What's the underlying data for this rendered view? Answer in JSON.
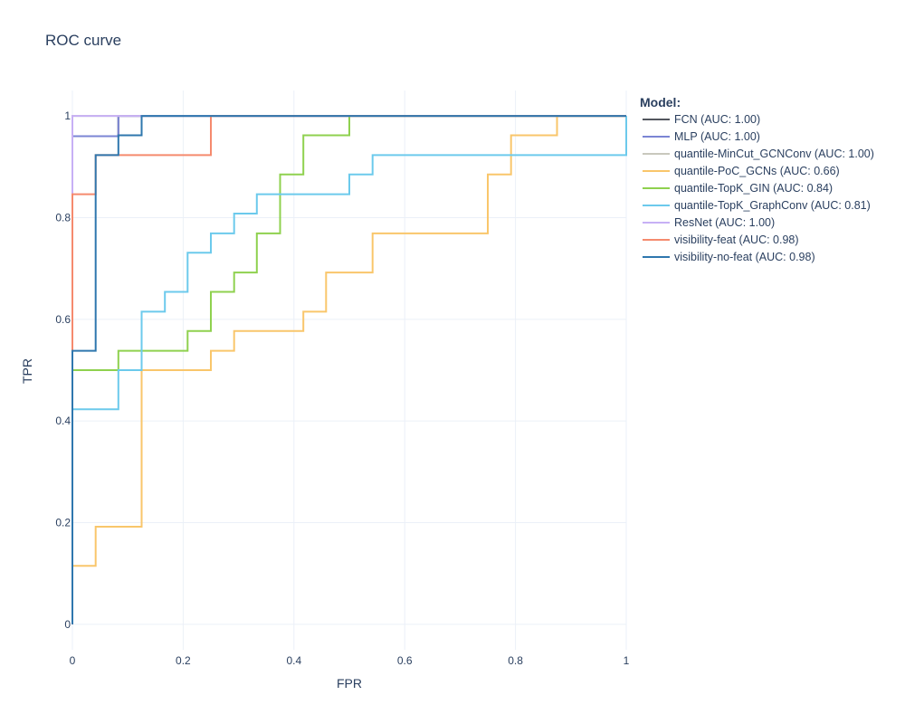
{
  "chart_data": {
    "type": "line",
    "title": "ROC curve",
    "xlabel": "FPR",
    "ylabel": "TPR",
    "xlim": [
      0,
      1
    ],
    "ylim": [
      -0.05,
      1.05
    ],
    "xticks": [
      0,
      0.2,
      0.4,
      0.6,
      0.8,
      1
    ],
    "xtick_labels": [
      "0",
      "0.2",
      "0.4",
      "0.6",
      "0.8",
      "1"
    ],
    "yticks": [
      0,
      0.2,
      0.4,
      0.6,
      0.8,
      1
    ],
    "ytick_labels": [
      "0",
      "0.2",
      "0.4",
      "0.6",
      "0.8",
      "1"
    ],
    "grid": true,
    "legend_title": "Model:",
    "legend_position": "right",
    "series": [
      {
        "name": "FCN (AUC: 1.00)",
        "color": "#53565e",
        "x": [
          0,
          0,
          0.083,
          0.083,
          1
        ],
        "y": [
          0,
          0.96,
          0.96,
          1.0,
          1.0
        ]
      },
      {
        "name": "MLP (AUC: 1.00)",
        "color": "#7b85d4",
        "x": [
          0,
          0,
          0.083,
          0.083,
          1
        ],
        "y": [
          0,
          0.96,
          0.96,
          1.0,
          1.0
        ]
      },
      {
        "name": "quantile-MinCut_GCNConv (AUC: 1.00)",
        "color": "#c9c8bd",
        "x": [
          0,
          0,
          1
        ],
        "y": [
          0,
          1.0,
          1.0
        ]
      },
      {
        "name": "quantile-PoC_GCNs (AUC: 0.66)",
        "color": "#f9c66b",
        "x": [
          0,
          0,
          0.042,
          0.042,
          0.125,
          0.125,
          0.25,
          0.25,
          0.292,
          0.292,
          0.417,
          0.417,
          0.458,
          0.458,
          0.542,
          0.542,
          0.75,
          0.75,
          0.792,
          0.792,
          0.875,
          0.875,
          1
        ],
        "y": [
          0,
          0.115,
          0.115,
          0.192,
          0.192,
          0.5,
          0.5,
          0.538,
          0.538,
          0.577,
          0.577,
          0.615,
          0.615,
          0.692,
          0.692,
          0.769,
          0.769,
          0.885,
          0.885,
          0.962,
          0.962,
          1.0,
          1.0
        ]
      },
      {
        "name": "quantile-TopK_GIN (AUC: 0.84)",
        "color": "#8fd14f",
        "x": [
          0,
          0,
          0.083,
          0.083,
          0.208,
          0.208,
          0.25,
          0.25,
          0.292,
          0.292,
          0.333,
          0.333,
          0.375,
          0.375,
          0.417,
          0.417,
          0.5,
          0.5,
          1
        ],
        "y": [
          0,
          0.5,
          0.5,
          0.538,
          0.538,
          0.577,
          0.577,
          0.654,
          0.654,
          0.692,
          0.692,
          0.769,
          0.769,
          0.885,
          0.885,
          0.962,
          0.962,
          1.0,
          1.0
        ]
      },
      {
        "name": "quantile-TopK_GraphConv (AUC: 0.81)",
        "color": "#6ccaec",
        "x": [
          0,
          0,
          0.083,
          0.083,
          0.125,
          0.125,
          0.167,
          0.167,
          0.208,
          0.208,
          0.25,
          0.25,
          0.292,
          0.292,
          0.333,
          0.333,
          0.5,
          0.5,
          0.542,
          0.542,
          1,
          1
        ],
        "y": [
          0,
          0.423,
          0.423,
          0.5,
          0.5,
          0.615,
          0.615,
          0.654,
          0.654,
          0.731,
          0.731,
          0.769,
          0.769,
          0.808,
          0.808,
          0.846,
          0.846,
          0.885,
          0.885,
          0.923,
          0.923,
          1.0
        ]
      },
      {
        "name": "ResNet (AUC: 1.00)",
        "color": "#c7b0f5",
        "x": [
          0,
          0,
          1
        ],
        "y": [
          0,
          1.0,
          1.0
        ]
      },
      {
        "name": "visibility-feat (AUC: 0.98)",
        "color": "#f58a6e",
        "x": [
          0,
          0,
          0.042,
          0.042,
          0.25,
          0.25,
          1
        ],
        "y": [
          0,
          0.846,
          0.846,
          0.923,
          0.923,
          1.0,
          1.0
        ]
      },
      {
        "name": "visibility-no-feat (AUC: 0.98)",
        "color": "#2f77ae",
        "x": [
          0,
          0,
          0.042,
          0.042,
          0.083,
          0.083,
          0.125,
          0.125,
          1
        ],
        "y": [
          0,
          0.538,
          0.538,
          0.923,
          0.923,
          0.962,
          0.962,
          1.0,
          1.0
        ]
      }
    ]
  }
}
